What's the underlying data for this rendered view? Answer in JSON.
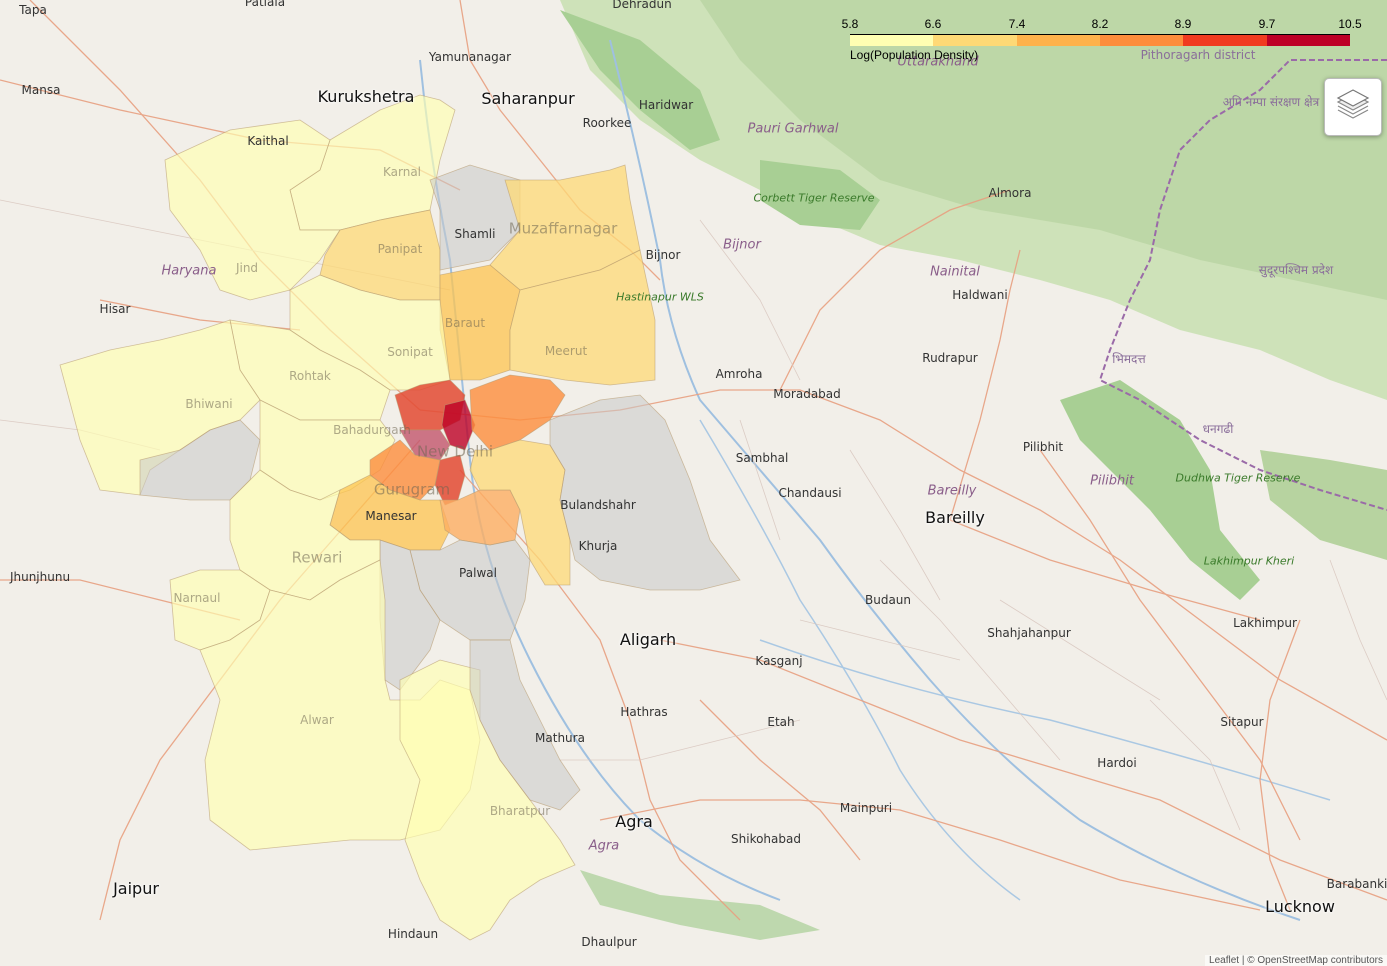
{
  "legend": {
    "title": "Log(Population Density)",
    "ticks": [
      "5.8",
      "6.6",
      "7.4",
      "8.2",
      "8.9",
      "9.7",
      "10.5"
    ],
    "colors": [
      "#ffffb2",
      "#fed976",
      "#feb24c",
      "#fd8d3c",
      "#f03b20",
      "#bd0026"
    ]
  },
  "layers_control": {
    "icon": "layers-icon"
  },
  "labels": {
    "cities": [
      "Kurukshetra",
      "Saharanpur",
      "Aligarh",
      "Agra",
      "Jaipur",
      "Bareilly",
      "Lucknow"
    ],
    "towns": [
      "Tapa",
      "Patiala",
      "Mansa",
      "Kaithal",
      "Yamunanagar",
      "Roorkee",
      "Haridwar",
      "Dehradun",
      "Hisar",
      "Bijnor",
      "Amroha",
      "Moradabad",
      "Sambhal",
      "Chandausi",
      "Rudrapur",
      "Haldwani",
      "Almora",
      "Pilibhit",
      "Budaun",
      "Kasganj",
      "Hathras",
      "Etah",
      "Mathura",
      "Mainpuri",
      "Shikohabad",
      "Hindaun",
      "Dhaulpur",
      "Jhunjhunu",
      "Shahjahanpur",
      "Lakhimpur",
      "Sitapur",
      "Hardoi",
      "Barabanki",
      "Bulandshahr",
      "Khurja",
      "Palwal",
      "Shamli",
      "Manesar"
    ],
    "regions": [
      "Haryana",
      "Pauri Garhwal",
      "Bijnor",
      "Nainital",
      "Bareilly",
      "Pilibhit",
      "Agra",
      "Uttarakhand"
    ],
    "districts": [
      "Karnal",
      "Jind",
      "Panipat",
      "Sonipat",
      "Rohtak",
      "Bhiwani",
      "Baraut",
      "Meerut",
      "Muzaffarnagar",
      "Rewari",
      "Gurugram",
      "New Delhi",
      "Bahadurgarh",
      "Narnaul",
      "Alwar",
      "Bharatpur"
    ],
    "protected": [
      "Corbett Tiger Reserve",
      "Hastinapur WLS",
      "Dudhwa Tiger Reserve",
      "Lakhimpur Kheri"
    ],
    "foreign": [
      "सुदूरपश्चिम प्रदेश",
      "अपि नम्पा संरक्षण क्षेत्र",
      "भिमदत्त",
      "धनगढी",
      "Pithoragarh district"
    ]
  },
  "attribution": "Leaflet | © OpenStreetMap contributors"
}
